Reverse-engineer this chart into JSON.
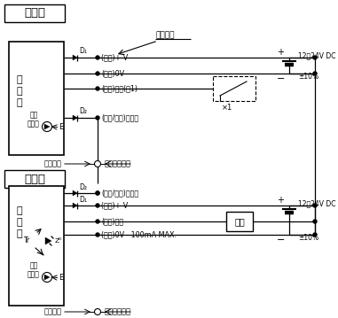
{
  "title_emitter": "投光器",
  "title_receiver": "受光器",
  "wire_color_label": "导线颜色",
  "emitter_wire_labels": [
    "(褐色)+ V",
    "(蓝色)0V",
    "(粉色)输入(泡1)",
    "(橙色/紫色)同步线"
  ],
  "receiver_wire_labels": [
    "(橙色/紫色)同步线",
    "(褐色)+ V",
    "(黑色)输出",
    "(蓝色)0V   100mA MAX."
  ],
  "internal_label": "内部电路",
  "external_label": "外部连接示例",
  "main_circuit_chars": [
    "主",
    "电",
    "路"
  ],
  "work_light": [
    "作业",
    "指示灯"
  ],
  "note1": "×1",
  "load_label": "负载",
  "voltage": "12～24V DC",
  "tolerance": "±10%",
  "d1": "D₁",
  "d2": "D₂",
  "tr": "Tr",
  "e_label": "E",
  "zd_label": "Zᴰ"
}
